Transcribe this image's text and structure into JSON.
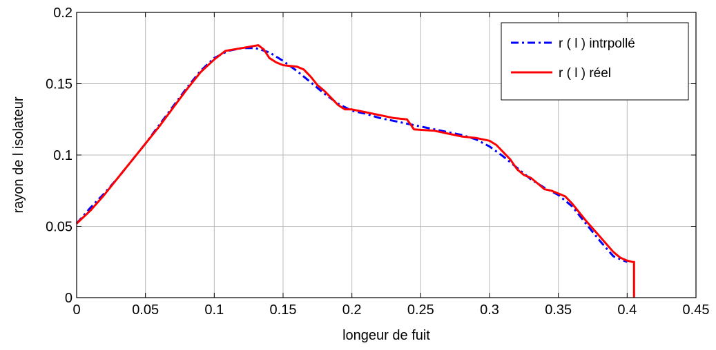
{
  "chart_data": {
    "type": "line",
    "title": "",
    "xlabel": "longeur de fuit",
    "ylabel": "rayon de l isolateur",
    "xlim": [
      0,
      0.45
    ],
    "ylim": [
      0,
      0.2
    ],
    "grid": true,
    "legend_position": "top-right",
    "x_ticks": [
      "0",
      "0.05",
      "0.1",
      "0.15",
      "0.2",
      "0.25",
      "0.3",
      "0.35",
      "0.4",
      "0.45"
    ],
    "y_ticks": [
      "0",
      "0.05",
      "0.1",
      "0.15",
      "0.2"
    ],
    "series": [
      {
        "name": "r ( l ) intrpollé",
        "color": "#0000ff",
        "line_style": "dash-dot",
        "x": [
          0,
          0.01,
          0.02,
          0.03,
          0.04,
          0.05,
          0.06,
          0.07,
          0.08,
          0.09,
          0.1,
          0.11,
          0.12,
          0.13,
          0.14,
          0.15,
          0.16,
          0.17,
          0.18,
          0.19,
          0.2,
          0.21,
          0.22,
          0.23,
          0.24,
          0.25,
          0.26,
          0.27,
          0.28,
          0.29,
          0.3,
          0.31,
          0.32,
          0.33,
          0.34,
          0.35,
          0.36,
          0.37,
          0.38,
          0.39,
          0.4
        ],
        "y": [
          0.052,
          0.063,
          0.073,
          0.084,
          0.096,
          0.108,
          0.121,
          0.134,
          0.147,
          0.159,
          0.168,
          0.173,
          0.175,
          0.175,
          0.172,
          0.166,
          0.159,
          0.151,
          0.143,
          0.136,
          0.131,
          0.129,
          0.126,
          0.124,
          0.122,
          0.12,
          0.118,
          0.116,
          0.114,
          0.111,
          0.106,
          0.099,
          0.091,
          0.083,
          0.077,
          0.072,
          0.064,
          0.052,
          0.04,
          0.029,
          0.025
        ]
      },
      {
        "name": "r ( l ) réel",
        "color": "#ff0000",
        "line_style": "solid",
        "x": [
          0,
          0.01,
          0.02,
          0.03,
          0.04,
          0.05,
          0.06,
          0.07,
          0.08,
          0.09,
          0.1,
          0.108,
          0.12,
          0.132,
          0.136,
          0.14,
          0.145,
          0.15,
          0.16,
          0.165,
          0.17,
          0.175,
          0.18,
          0.185,
          0.19,
          0.195,
          0.2,
          0.21,
          0.22,
          0.23,
          0.24,
          0.243,
          0.245,
          0.26,
          0.27,
          0.28,
          0.29,
          0.3,
          0.305,
          0.31,
          0.315,
          0.32,
          0.325,
          0.33,
          0.335,
          0.34,
          0.345,
          0.35,
          0.355,
          0.36,
          0.37,
          0.38,
          0.39,
          0.395,
          0.4,
          0.404,
          0.405,
          0.405
        ],
        "y": [
          0.052,
          0.061,
          0.072,
          0.084,
          0.096,
          0.108,
          0.12,
          0.133,
          0.146,
          0.158,
          0.167,
          0.173,
          0.175,
          0.177,
          0.174,
          0.168,
          0.165,
          0.163,
          0.162,
          0.16,
          0.155,
          0.149,
          0.145,
          0.14,
          0.135,
          0.132,
          0.132,
          0.13,
          0.128,
          0.126,
          0.125,
          0.121,
          0.118,
          0.117,
          0.115,
          0.113,
          0.112,
          0.11,
          0.107,
          0.102,
          0.097,
          0.09,
          0.086,
          0.084,
          0.08,
          0.076,
          0.075,
          0.073,
          0.071,
          0.066,
          0.054,
          0.043,
          0.032,
          0.028,
          0.026,
          0.025,
          0.025,
          0.0
        ]
      }
    ]
  }
}
